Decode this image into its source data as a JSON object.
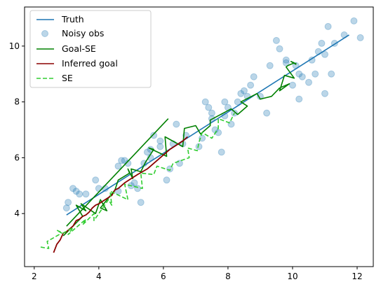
{
  "chart_data": {
    "type": "line",
    "title": "",
    "xlabel": "",
    "ylabel": "",
    "xlim": [
      1.7,
      12.5
    ],
    "ylim": [
      2.1,
      11.4
    ],
    "xticks": [
      2,
      4,
      6,
      8,
      10,
      12
    ],
    "yticks": [
      4,
      6,
      8,
      10
    ],
    "grid": false,
    "legend_position": "top-left",
    "colors": {
      "truth": "#1f77b4",
      "noisy": "#1f77b4",
      "goal_se": "#008000",
      "inferred": "#8b0000",
      "se": "#32cd32"
    },
    "series": [
      {
        "name": "Truth",
        "style": "solid-line",
        "x": [
          3.0,
          11.75
        ],
        "y": [
          3.95,
          10.4
        ]
      },
      {
        "name": "Noisy obs",
        "style": "scatter",
        "points": [
          [
            3.0,
            4.2
          ],
          [
            3.05,
            4.4
          ],
          [
            3.2,
            4.9
          ],
          [
            3.3,
            4.8
          ],
          [
            3.4,
            4.7
          ],
          [
            3.6,
            4.7
          ],
          [
            3.9,
            5.2
          ],
          [
            4.0,
            4.9
          ],
          [
            4.2,
            4.9
          ],
          [
            4.6,
            4.8
          ],
          [
            4.6,
            5.7
          ],
          [
            4.7,
            5.9
          ],
          [
            4.8,
            5.9
          ],
          [
            4.9,
            5.8
          ],
          [
            5.0,
            5.0
          ],
          [
            5.1,
            5.1
          ],
          [
            5.2,
            4.9
          ],
          [
            5.3,
            4.4
          ],
          [
            5.4,
            5.8
          ],
          [
            5.5,
            6.2
          ],
          [
            5.6,
            6.3
          ],
          [
            5.6,
            6.0
          ],
          [
            5.7,
            6.8
          ],
          [
            5.9,
            6.6
          ],
          [
            5.9,
            6.4
          ],
          [
            6.1,
            5.2
          ],
          [
            6.2,
            5.6
          ],
          [
            6.3,
            6.5
          ],
          [
            6.4,
            7.2
          ],
          [
            6.5,
            5.8
          ],
          [
            6.6,
            6.5
          ],
          [
            6.7,
            6.8
          ],
          [
            7.1,
            6.4
          ],
          [
            7.2,
            6.7
          ],
          [
            7.3,
            8.0
          ],
          [
            7.4,
            7.8
          ],
          [
            7.5,
            7.6
          ],
          [
            7.5,
            7.4
          ],
          [
            7.6,
            7.0
          ],
          [
            7.7,
            6.9
          ],
          [
            7.8,
            6.2
          ],
          [
            7.9,
            7.5
          ],
          [
            7.9,
            8.0
          ],
          [
            8.0,
            7.8
          ],
          [
            8.1,
            7.2
          ],
          [
            8.2,
            7.6
          ],
          [
            8.3,
            8.0
          ],
          [
            8.4,
            8.3
          ],
          [
            8.5,
            8.4
          ],
          [
            8.6,
            8.2
          ],
          [
            8.7,
            8.6
          ],
          [
            8.8,
            8.9
          ],
          [
            9.0,
            8.2
          ],
          [
            9.2,
            7.6
          ],
          [
            9.3,
            9.3
          ],
          [
            9.5,
            10.2
          ],
          [
            9.6,
            9.9
          ],
          [
            9.8,
            9.5
          ],
          [
            9.8,
            9.4
          ],
          [
            10.0,
            8.6
          ],
          [
            10.1,
            9.3
          ],
          [
            10.2,
            8.1
          ],
          [
            10.2,
            9.0
          ],
          [
            10.3,
            8.9
          ],
          [
            10.5,
            8.7
          ],
          [
            10.6,
            9.5
          ],
          [
            10.7,
            9.0
          ],
          [
            10.8,
            9.8
          ],
          [
            10.9,
            10.1
          ],
          [
            11.0,
            8.3
          ],
          [
            11.0,
            9.7
          ],
          [
            11.1,
            10.7
          ],
          [
            11.2,
            9.0
          ],
          [
            11.3,
            10.1
          ],
          [
            11.6,
            10.4
          ],
          [
            11.9,
            10.9
          ],
          [
            12.1,
            10.3
          ]
        ]
      },
      {
        "name": "Goal-SE",
        "style": "solid-line",
        "x": [
          2.9,
          3.5,
          3.3,
          3.6,
          3.45,
          3.9,
          4.05,
          4.25,
          4.05,
          4.5,
          4.6,
          4.95,
          4.9,
          5.05,
          5.0,
          5.3,
          5.45,
          5.7,
          5.55,
          6.1,
          6.05,
          6.6,
          6.65,
          7.0,
          7.15,
          7.45,
          7.45,
          8.1,
          8.3,
          8.6,
          8.4,
          8.9,
          9.0,
          9.35,
          9.6,
          9.9,
          9.6,
          9.75,
          10.05,
          9.8,
          9.85,
          10.05,
          9.95,
          10.1,
          10.1
        ],
        "y": [
          3.2,
          3.9,
          4.3,
          4.1,
          4.35,
          4.0,
          4.5,
          4.1,
          4.2,
          4.85,
          5.2,
          5.45,
          5.6,
          5.25,
          5.6,
          5.5,
          5.85,
          6.3,
          6.35,
          6.05,
          6.75,
          6.4,
          7.05,
          7.15,
          6.85,
          7.15,
          7.35,
          7.75,
          7.55,
          7.85,
          8.0,
          8.3,
          8.1,
          8.2,
          8.5,
          8.65,
          8.4,
          8.95,
          8.85,
          9.25,
          9.3,
          9.4,
          9.45,
          9.35,
          9.4
        ]
      },
      {
        "name": "Goal-SE",
        "style": "solid-line-segment",
        "x": [
          3.0,
          6.15
        ],
        "y": [
          3.55,
          7.4
        ]
      },
      {
        "name": "Inferred goal",
        "style": "solid-line",
        "x": [
          2.6,
          2.7,
          2.8,
          2.9,
          3.0,
          3.1,
          3.2,
          3.3,
          3.4,
          3.5,
          3.6,
          3.7,
          3.8,
          3.9,
          4.0,
          4.2,
          4.4,
          4.5,
          4.6,
          4.7,
          4.8,
          5.0,
          5.2,
          5.5,
          5.8,
          6.0,
          6.2,
          6.4,
          6.6,
          6.75
        ],
        "y": [
          2.6,
          2.9,
          3.05,
          3.3,
          3.35,
          3.45,
          3.55,
          3.75,
          3.8,
          3.9,
          3.95,
          4.05,
          4.2,
          4.3,
          4.35,
          4.5,
          4.65,
          4.85,
          4.9,
          5.0,
          5.1,
          5.25,
          5.4,
          5.6,
          5.9,
          6.1,
          6.3,
          6.45,
          6.6,
          6.75
        ]
      },
      {
        "name": "SE",
        "style": "dashed-line",
        "x": [
          2.2,
          2.45,
          2.4,
          2.85,
          2.7,
          2.9,
          3.2,
          3.05,
          3.6,
          3.5,
          3.85,
          3.85,
          4.3,
          4.4,
          4.35,
          4.9,
          4.8,
          5.35,
          5.3,
          5.7,
          5.8,
          6.2,
          6.3,
          6.8,
          6.75,
          7.05,
          7.1,
          7.2,
          7.5,
          7.7,
          7.7,
          8.05,
          8.2
        ],
        "y": [
          2.8,
          2.75,
          3.0,
          3.3,
          3.4,
          3.3,
          3.5,
          3.25,
          3.8,
          3.6,
          4.0,
          3.75,
          4.5,
          4.3,
          4.8,
          4.5,
          5.05,
          4.9,
          5.45,
          5.4,
          5.7,
          5.55,
          5.8,
          6.0,
          6.35,
          6.25,
          6.55,
          6.9,
          6.7,
          7.05,
          7.4,
          7.25,
          7.6
        ]
      }
    ]
  }
}
